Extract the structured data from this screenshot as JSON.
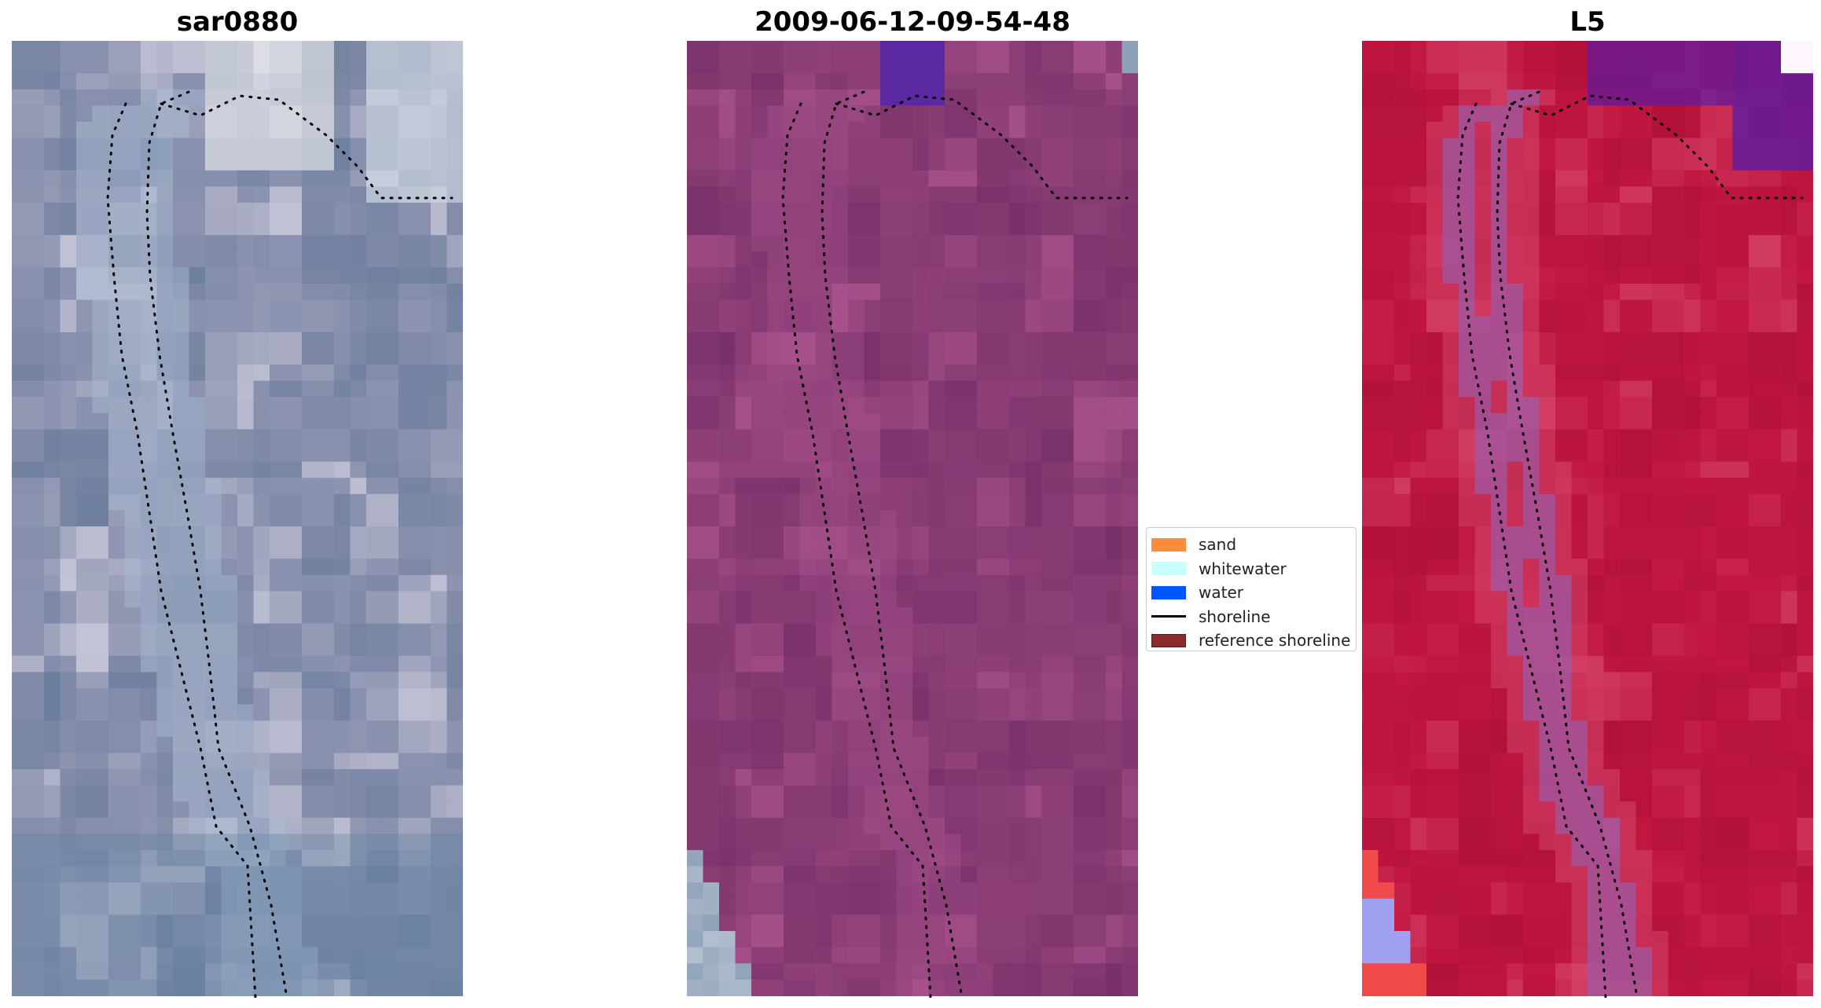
{
  "panels": [
    {
      "id": "rgb",
      "title": "sar0880",
      "palette": {
        "base": "#8d93b0",
        "light": "#d8d6e4",
        "dark": "#5e7594"
      }
    },
    {
      "id": "classified",
      "title": "2009-06-12-09-54-48",
      "palette": {
        "base": "#8e3f77",
        "light": "#b35a97",
        "dark": "#6f2a63",
        "water": "#5b2aa3",
        "sand_edge": "#8ea1b8"
      }
    },
    {
      "id": "index",
      "title": "L5",
      "palette": {
        "base": "#c0163f",
        "light": "#d94f74",
        "dark": "#a50c35",
        "band": "#9c5aa8",
        "purple": "#5d1aa0",
        "red": "#f04a4a"
      }
    }
  ],
  "legend": {
    "items": [
      {
        "label": "sand",
        "color": "#ff8c3a",
        "kind": "patch"
      },
      {
        "label": "whitewater",
        "color": "#c8ffff",
        "kind": "patch"
      },
      {
        "label": "water",
        "color": "#0055ff",
        "kind": "patch"
      },
      {
        "label": "shoreline",
        "color": "#000000",
        "kind": "line"
      },
      {
        "label": "reference shoreline",
        "color": "#8b2c2c",
        "kind": "patch"
      }
    ]
  }
}
